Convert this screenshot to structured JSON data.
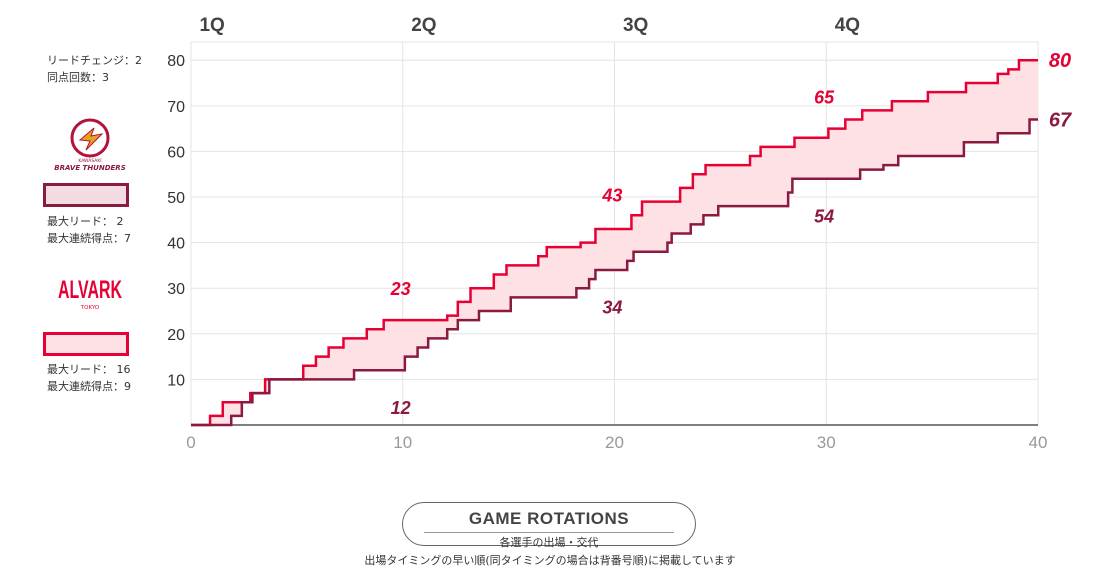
{
  "sidebar": {
    "lead_changes": "リードチェンジ：2",
    "ties": "同点回数：3",
    "team1": {
      "logo_text_small": "KAWASAKI",
      "logo_text": "BRAVE THUNDERS",
      "color": "#8b1a40",
      "fill": "#f3dbe2",
      "max_lead": "最大リード：  2",
      "max_run": "最大連続得点：7"
    },
    "team2": {
      "logo_text": "ALVARK",
      "logo_sub": "TOKYO",
      "color": "#e60033",
      "fill": "#fde1e4",
      "max_lead": "最大リード：  16",
      "max_run": "最大連続得点：9"
    }
  },
  "chart_data": {
    "type": "line",
    "step": true,
    "quarter_labels": [
      "1Q",
      "2Q",
      "3Q",
      "4Q"
    ],
    "quarter_label_x": [
      1,
      11,
      21,
      31
    ],
    "xlim": [
      0,
      40
    ],
    "ylim": [
      0,
      84
    ],
    "x_ticks": [
      0,
      10,
      20,
      30,
      40
    ],
    "y_ticks": [
      10,
      20,
      30,
      40,
      50,
      60,
      70,
      80
    ],
    "grid": true,
    "series": [
      {
        "team": "alvark",
        "color": "#e60033",
        "points": [
          [
            0,
            0
          ],
          [
            0.9,
            2
          ],
          [
            1.5,
            5
          ],
          [
            2.8,
            7
          ],
          [
            3.5,
            10
          ],
          [
            5.3,
            13
          ],
          [
            5.9,
            15
          ],
          [
            6.5,
            17
          ],
          [
            7.2,
            19
          ],
          [
            8.3,
            21
          ],
          [
            9.1,
            23
          ],
          [
            12.1,
            24
          ],
          [
            12.6,
            27
          ],
          [
            13.2,
            30
          ],
          [
            14.3,
            33
          ],
          [
            14.9,
            35
          ],
          [
            16.4,
            37
          ],
          [
            16.8,
            39
          ],
          [
            18.4,
            40
          ],
          [
            19.1,
            43
          ],
          [
            20.8,
            46
          ],
          [
            21.3,
            49
          ],
          [
            23.1,
            52
          ],
          [
            23.7,
            55
          ],
          [
            24.3,
            57
          ],
          [
            26.4,
            59
          ],
          [
            26.9,
            61
          ],
          [
            28.5,
            63
          ],
          [
            30.1,
            65
          ],
          [
            30.9,
            67
          ],
          [
            31.7,
            69
          ],
          [
            33.1,
            71
          ],
          [
            34.8,
            73
          ],
          [
            36.6,
            75
          ],
          [
            38.1,
            77
          ],
          [
            38.6,
            78
          ],
          [
            39.1,
            80
          ],
          [
            40,
            80
          ]
        ],
        "end_value": 80,
        "end_label": "80"
      },
      {
        "team": "brave-thunders",
        "color": "#8b1a40",
        "points": [
          [
            0,
            0
          ],
          [
            1.9,
            2
          ],
          [
            2.4,
            5
          ],
          [
            2.9,
            7
          ],
          [
            3.7,
            10
          ],
          [
            7.7,
            12
          ],
          [
            10.1,
            15
          ],
          [
            10.7,
            17
          ],
          [
            11.2,
            19
          ],
          [
            12.1,
            21
          ],
          [
            12.6,
            23
          ],
          [
            13.6,
            25
          ],
          [
            15.1,
            28
          ],
          [
            18.2,
            30
          ],
          [
            18.8,
            32
          ],
          [
            19.1,
            34
          ],
          [
            20.6,
            36
          ],
          [
            20.9,
            38
          ],
          [
            22.5,
            40
          ],
          [
            22.7,
            42
          ],
          [
            23.6,
            44
          ],
          [
            24.2,
            46
          ],
          [
            24.9,
            48
          ],
          [
            28.2,
            51
          ],
          [
            28.4,
            54
          ],
          [
            31.6,
            56
          ],
          [
            32.7,
            57
          ],
          [
            33.4,
            59
          ],
          [
            36.5,
            62
          ],
          [
            38.1,
            64
          ],
          [
            39.6,
            67
          ],
          [
            40,
            67
          ]
        ],
        "end_value": 67,
        "end_label": "67"
      }
    ],
    "annotations": [
      {
        "text": "23",
        "x": 9.9,
        "y": 30,
        "team": "alvark"
      },
      {
        "text": "12",
        "x": 9.9,
        "y": 4,
        "team": "brave-thunders"
      },
      {
        "text": "43",
        "x": 19.9,
        "y": 50.6,
        "team": "alvark"
      },
      {
        "text": "34",
        "x": 19.9,
        "y": 26,
        "team": "brave-thunders"
      },
      {
        "text": "65",
        "x": 29.9,
        "y": 72,
        "team": "alvark"
      },
      {
        "text": "54",
        "x": 29.9,
        "y": 46,
        "team": "brave-thunders"
      }
    ]
  },
  "footer": {
    "title": "GAME ROTATIONS",
    "subtitle": "各選手の出場・交代",
    "note": "出場タイミングの早い順(同タイミングの場合は背番号順)に掲載しています"
  }
}
